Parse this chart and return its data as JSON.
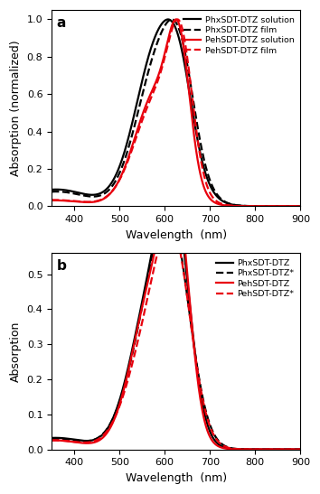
{
  "panel_a": {
    "title": "a",
    "ylabel": "Absorption (normalized)",
    "xlabel": "Wavelength  (nm)",
    "xlim": [
      350,
      900
    ],
    "ylim": [
      0.0,
      1.05
    ],
    "yticks": [
      0.0,
      0.2,
      0.4,
      0.6,
      0.8,
      1.0
    ],
    "legend": [
      {
        "label": "PhxSDT-DTZ solution",
        "color": "black",
        "ls": "-"
      },
      {
        "label": "PhxSDT-DTZ film",
        "color": "black",
        "ls": "--"
      },
      {
        "label": "PehSDT-DTZ solution",
        "color": "#e8000d",
        "ls": "-"
      },
      {
        "label": "PehSDT-DTZ film",
        "color": "#e8000d",
        "ls": "--"
      }
    ]
  },
  "panel_b": {
    "title": "b",
    "ylabel": "Absorption",
    "xlabel": "Wavelength  (nm)",
    "xlim": [
      350,
      900
    ],
    "ylim": [
      0.0,
      0.56
    ],
    "yticks": [
      0.0,
      0.1,
      0.2,
      0.3,
      0.4,
      0.5
    ],
    "legend": [
      {
        "label": "PhxSDT-DTZ",
        "color": "black",
        "ls": "-"
      },
      {
        "label": "PhxSDT-DTZ*",
        "color": "black",
        "ls": "--"
      },
      {
        "label": "PehSDT-DTZ",
        "color": "#e8000d",
        "ls": "-"
      },
      {
        "label": "PehSDT-DTZ*",
        "color": "#e8000d",
        "ls": "--"
      }
    ]
  }
}
